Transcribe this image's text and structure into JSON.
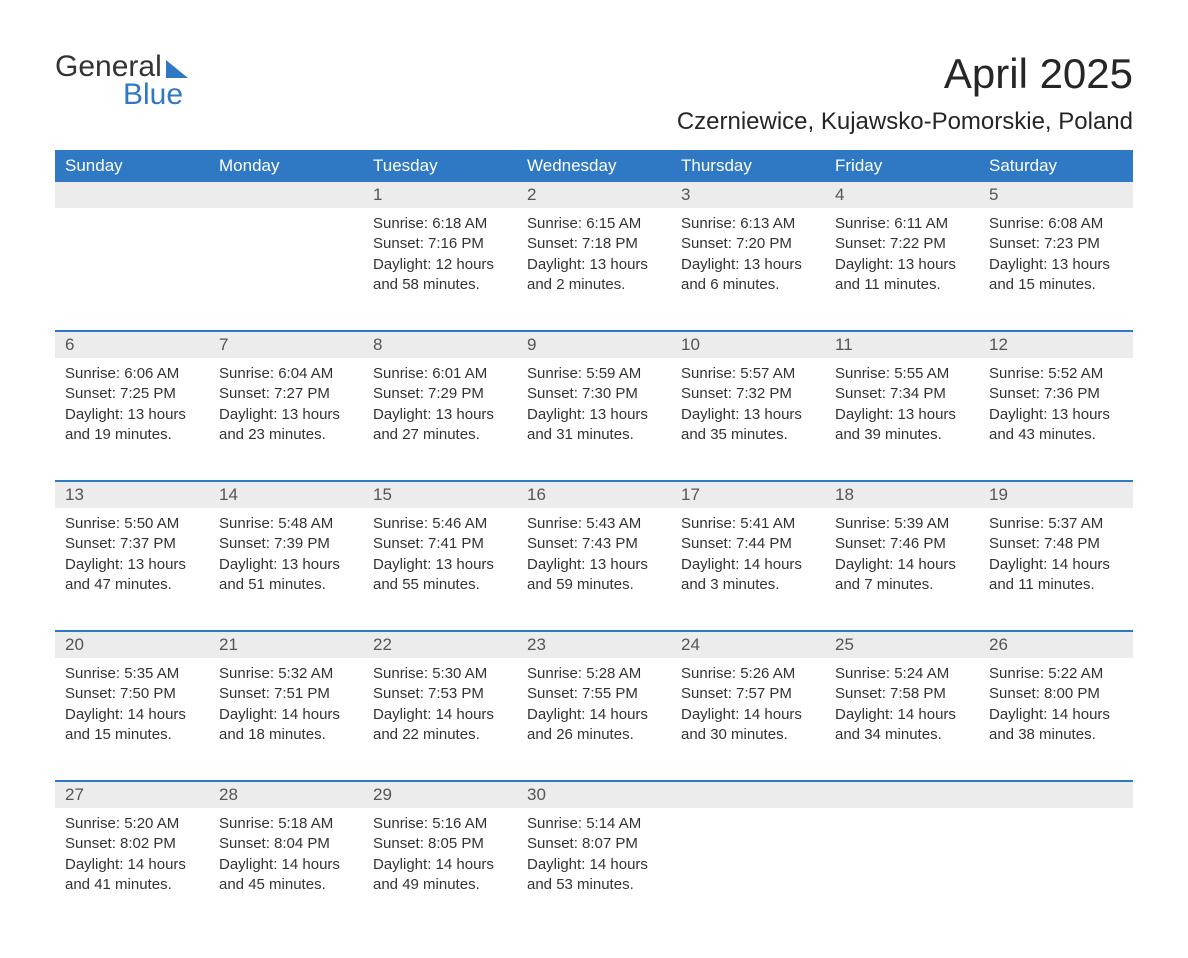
{
  "brand": {
    "word1": "General",
    "word2": "Blue",
    "accent_color": "#2f78c4"
  },
  "title": "April 2025",
  "location": "Czerniewice, Kujawsko-Pomorskie, Poland",
  "colors": {
    "header_bg": "#2f78c4",
    "header_text": "#ffffff",
    "daynum_bg": "#ececec",
    "text": "#333333",
    "rule": "#2f78c4",
    "background": "#ffffff"
  },
  "typography": {
    "base_font": "Arial",
    "title_size_pt": 32,
    "location_size_pt": 18,
    "body_size_pt": 11
  },
  "day_names": [
    "Sunday",
    "Monday",
    "Tuesday",
    "Wednesday",
    "Thursday",
    "Friday",
    "Saturday"
  ],
  "weeks": [
    [
      null,
      null,
      {
        "d": "1",
        "sr": "6:18 AM",
        "ss": "7:16 PM",
        "dl": "12 hours and 58 minutes."
      },
      {
        "d": "2",
        "sr": "6:15 AM",
        "ss": "7:18 PM",
        "dl": "13 hours and 2 minutes."
      },
      {
        "d": "3",
        "sr": "6:13 AM",
        "ss": "7:20 PM",
        "dl": "13 hours and 6 minutes."
      },
      {
        "d": "4",
        "sr": "6:11 AM",
        "ss": "7:22 PM",
        "dl": "13 hours and 11 minutes."
      },
      {
        "d": "5",
        "sr": "6:08 AM",
        "ss": "7:23 PM",
        "dl": "13 hours and 15 minutes."
      }
    ],
    [
      {
        "d": "6",
        "sr": "6:06 AM",
        "ss": "7:25 PM",
        "dl": "13 hours and 19 minutes."
      },
      {
        "d": "7",
        "sr": "6:04 AM",
        "ss": "7:27 PM",
        "dl": "13 hours and 23 minutes."
      },
      {
        "d": "8",
        "sr": "6:01 AM",
        "ss": "7:29 PM",
        "dl": "13 hours and 27 minutes."
      },
      {
        "d": "9",
        "sr": "5:59 AM",
        "ss": "7:30 PM",
        "dl": "13 hours and 31 minutes."
      },
      {
        "d": "10",
        "sr": "5:57 AM",
        "ss": "7:32 PM",
        "dl": "13 hours and 35 minutes."
      },
      {
        "d": "11",
        "sr": "5:55 AM",
        "ss": "7:34 PM",
        "dl": "13 hours and 39 minutes."
      },
      {
        "d": "12",
        "sr": "5:52 AM",
        "ss": "7:36 PM",
        "dl": "13 hours and 43 minutes."
      }
    ],
    [
      {
        "d": "13",
        "sr": "5:50 AM",
        "ss": "7:37 PM",
        "dl": "13 hours and 47 minutes."
      },
      {
        "d": "14",
        "sr": "5:48 AM",
        "ss": "7:39 PM",
        "dl": "13 hours and 51 minutes."
      },
      {
        "d": "15",
        "sr": "5:46 AM",
        "ss": "7:41 PM",
        "dl": "13 hours and 55 minutes."
      },
      {
        "d": "16",
        "sr": "5:43 AM",
        "ss": "7:43 PM",
        "dl": "13 hours and 59 minutes."
      },
      {
        "d": "17",
        "sr": "5:41 AM",
        "ss": "7:44 PM",
        "dl": "14 hours and 3 minutes."
      },
      {
        "d": "18",
        "sr": "5:39 AM",
        "ss": "7:46 PM",
        "dl": "14 hours and 7 minutes."
      },
      {
        "d": "19",
        "sr": "5:37 AM",
        "ss": "7:48 PM",
        "dl": "14 hours and 11 minutes."
      }
    ],
    [
      {
        "d": "20",
        "sr": "5:35 AM",
        "ss": "7:50 PM",
        "dl": "14 hours and 15 minutes."
      },
      {
        "d": "21",
        "sr": "5:32 AM",
        "ss": "7:51 PM",
        "dl": "14 hours and 18 minutes."
      },
      {
        "d": "22",
        "sr": "5:30 AM",
        "ss": "7:53 PM",
        "dl": "14 hours and 22 minutes."
      },
      {
        "d": "23",
        "sr": "5:28 AM",
        "ss": "7:55 PM",
        "dl": "14 hours and 26 minutes."
      },
      {
        "d": "24",
        "sr": "5:26 AM",
        "ss": "7:57 PM",
        "dl": "14 hours and 30 minutes."
      },
      {
        "d": "25",
        "sr": "5:24 AM",
        "ss": "7:58 PM",
        "dl": "14 hours and 34 minutes."
      },
      {
        "d": "26",
        "sr": "5:22 AM",
        "ss": "8:00 PM",
        "dl": "14 hours and 38 minutes."
      }
    ],
    [
      {
        "d": "27",
        "sr": "5:20 AM",
        "ss": "8:02 PM",
        "dl": "14 hours and 41 minutes."
      },
      {
        "d": "28",
        "sr": "5:18 AM",
        "ss": "8:04 PM",
        "dl": "14 hours and 45 minutes."
      },
      {
        "d": "29",
        "sr": "5:16 AM",
        "ss": "8:05 PM",
        "dl": "14 hours and 49 minutes."
      },
      {
        "d": "30",
        "sr": "5:14 AM",
        "ss": "8:07 PM",
        "dl": "14 hours and 53 minutes."
      },
      null,
      null,
      null
    ]
  ],
  "labels": {
    "sunrise": "Sunrise: ",
    "sunset": "Sunset: ",
    "daylight": "Daylight: "
  }
}
